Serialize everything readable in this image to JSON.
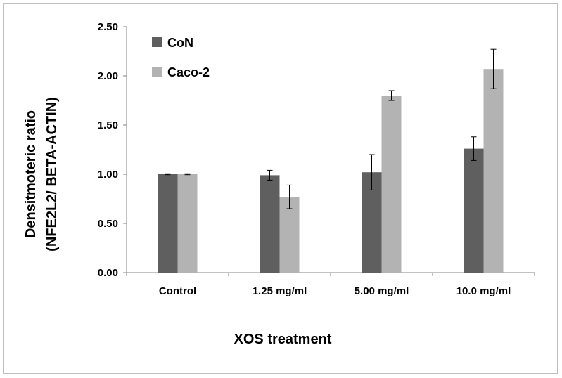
{
  "chart_data": {
    "type": "bar",
    "title": "",
    "xlabel": "XOS treatment",
    "ylabel_line1": "Densitmoteric ratio",
    "ylabel_line2": "(NFE2L2/ BETA-ACTIN)",
    "categories": [
      "Control",
      "1.25 mg/ml",
      "5.00 mg/ml",
      "10.0 mg/ml"
    ],
    "ylim": [
      0,
      2.5
    ],
    "yticks": [
      "0.00",
      "0.50",
      "1.00",
      "1.50",
      "2.00",
      "2.50"
    ],
    "ytick_values": [
      0,
      0.5,
      1.0,
      1.5,
      2.0,
      2.5
    ],
    "grid": false,
    "legend_position": "top-left",
    "series": [
      {
        "name": "CoN",
        "color": "#5f5f5f",
        "values": [
          1.0,
          0.99,
          1.02,
          1.26
        ],
        "errors": [
          0.005,
          0.05,
          0.18,
          0.12
        ]
      },
      {
        "name": "Caco-2",
        "color": "#b3b3b3",
        "values": [
          1.0,
          0.77,
          1.8,
          2.07
        ],
        "errors": [
          0.005,
          0.12,
          0.05,
          0.2
        ]
      }
    ]
  }
}
